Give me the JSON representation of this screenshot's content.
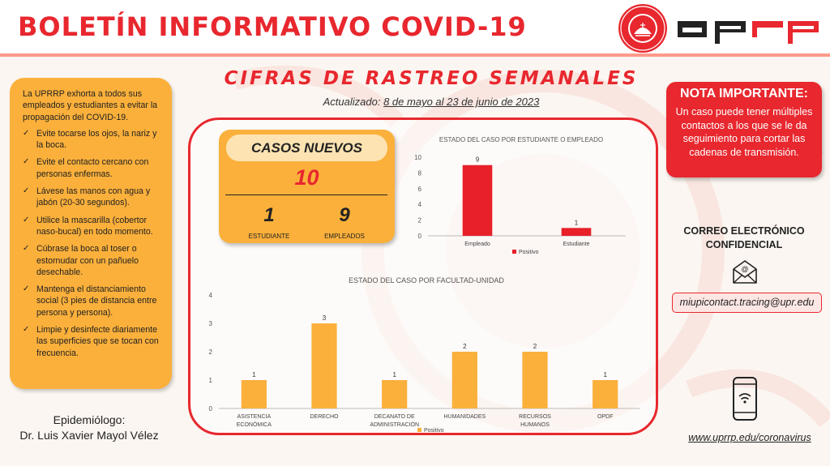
{
  "header": {
    "title": "BOLETÍN INFORMATIVO COVID-19",
    "seal_text": "UNIVERSIDAD DE PUERTO RICO · RECINTO DE RÍO PIEDRAS",
    "logo_text": "uprrp"
  },
  "section": {
    "title": "CIFRAS DE RASTREO SEMANALES",
    "updated_label": "Actualizado:",
    "updated_dates": "8 de mayo al 23 de junio de 2023"
  },
  "tips": {
    "intro": "La UPRRP exhorta a todos sus empleados y estudiantes a evitar la propagación del COVID-19.",
    "items": [
      "Evite tocarse los ojos, la nariz y la boca.",
      "Evite el contacto cercano con personas enfermas.",
      "Lávese las manos con agua y jabón (20-30 segundos).",
      "Utilice la mascarilla (cobertor naso-bucal) en todo momento.",
      "Cúbrase la boca al toser o estornudar con un pañuelo desechable.",
      "Mantenga el distanciamiento social (3 pies de distancia entre persona y persona).",
      "Limpie y desinfecte diariamente las superficies que se tocan con frecuencia."
    ]
  },
  "epidemiologist": {
    "label": "Epidemiólogo:",
    "name": "Dr. Luis Xavier Mayol Vélez"
  },
  "cases": {
    "heading": "CASOS NUEVOS",
    "total": "10",
    "students": "1",
    "students_label": "ESTUDIANTE",
    "employees": "9",
    "employees_label": "EMPLEADOS"
  },
  "nota": {
    "title": "NOTA IMPORTANTE:",
    "body": "Un caso puede tener múltiples contactos a los que se le da seguimiento para cortar las cadenas de transmisión."
  },
  "contact": {
    "email_heading_line1": "CORREO ELECTRÓNICO",
    "email_heading_line2": "CONFIDENCIAL",
    "email": "miupicontact.tracing@upr.edu",
    "website": "www.uprrp.edu/coronavirus"
  },
  "colors": {
    "brand_red": "#e8272e",
    "accent_orange": "#fbb03b",
    "chart_red": "#e8202a",
    "chart_orange": "#fbb03b"
  },
  "chart_data": [
    {
      "type": "bar",
      "title": "ESTADO DEL CASO POR ESTUDIANTE O EMPLEADO",
      "categories": [
        "Empleado",
        "Estudiante"
      ],
      "series": [
        {
          "name": "Positivo",
          "values": [
            9,
            1
          ]
        }
      ],
      "ylim": [
        0,
        10
      ],
      "yticks": [
        0,
        2,
        4,
        6,
        8,
        10
      ],
      "legend": "bottom",
      "grid": false
    },
    {
      "type": "bar",
      "title": "ESTADO DEL CASO POR FACULTAD-UNIDAD",
      "categories": [
        "ASISTENCIA ECONÓMICA",
        "DERECHO",
        "DECANATO DE ADMINISTRACIÓN",
        "HUMANIDADES",
        "RECURSOS HUMANOS",
        "OPDF"
      ],
      "series": [
        {
          "name": "Positivo",
          "values": [
            1,
            3,
            1,
            2,
            2,
            1
          ]
        }
      ],
      "ylim": [
        0,
        4
      ],
      "yticks": [
        0,
        1,
        2,
        3,
        4
      ],
      "legend": "bottom",
      "grid": false
    }
  ]
}
